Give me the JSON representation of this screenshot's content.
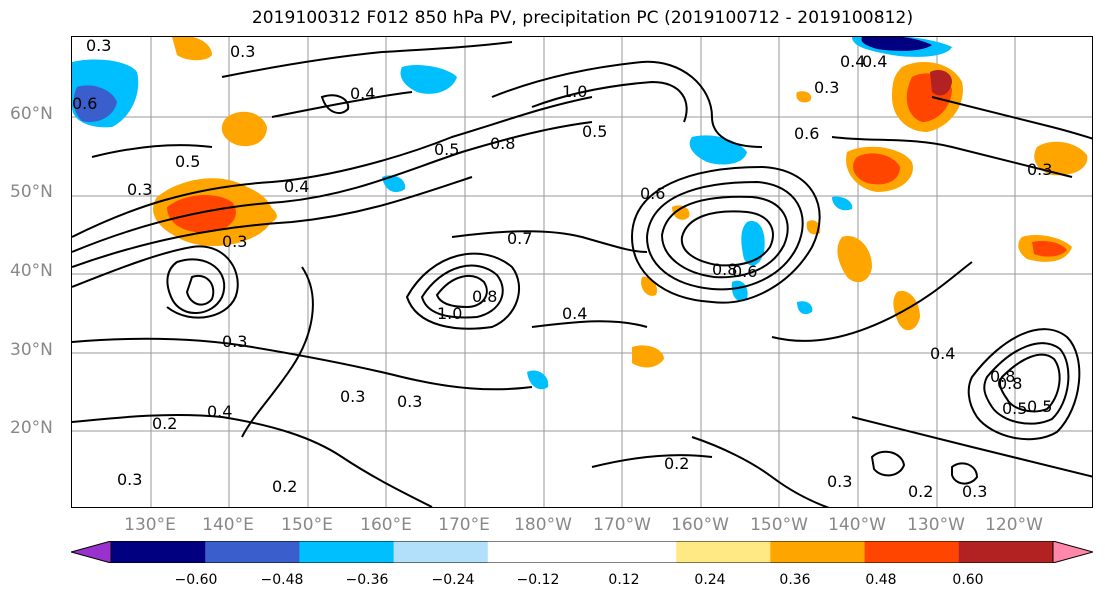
{
  "title": "2019100312 F012 850 hPa PV, precipitation PC (2019100712 - 2019100812)",
  "lat_labels": [
    "60°N",
    "50°N",
    "40°N",
    "30°N",
    "20°N"
  ],
  "lon_labels": [
    "130°E",
    "140°E",
    "150°E",
    "160°E",
    "170°E",
    "180°W",
    "170°W",
    "160°W",
    "150°W",
    "140°W",
    "130°W",
    "120°W"
  ],
  "colorbar": {
    "colors": [
      "#9932cc",
      "#000080",
      "#3a5fcd",
      "#00bfff",
      "#b2e0fb",
      "#ffffff",
      "#ffffff",
      "#ffe984",
      "#ffa500",
      "#ff4500",
      "#b22222",
      "#ff88aa"
    ],
    "ticks": [
      "−0.60",
      "−0.48",
      "−0.36",
      "−0.24",
      "−0.12",
      "0.12",
      "0.24",
      "0.36",
      "0.48",
      "0.60"
    ]
  },
  "contour_labels": [
    "0.3",
    "0.6",
    "0.3",
    "0.4",
    "0.3",
    "0.5",
    "0.3",
    "0.4",
    "0.8",
    "0.5",
    "0.8",
    "1.0",
    "0.7",
    "0.6",
    "0.4",
    "0.3",
    "0.3",
    "0.2",
    "0.4",
    "0.3",
    "0.2",
    "0.2",
    "0.3",
    "0.3",
    "0.8",
    "0.4",
    "0.5",
    "0.6",
    "0.3",
    "0.4",
    "0.2",
    "0.3",
    "0.4",
    "0.8",
    "0.5",
    "1.0",
    "0.6",
    "0.8",
    "0.5",
    "0.3"
  ]
}
